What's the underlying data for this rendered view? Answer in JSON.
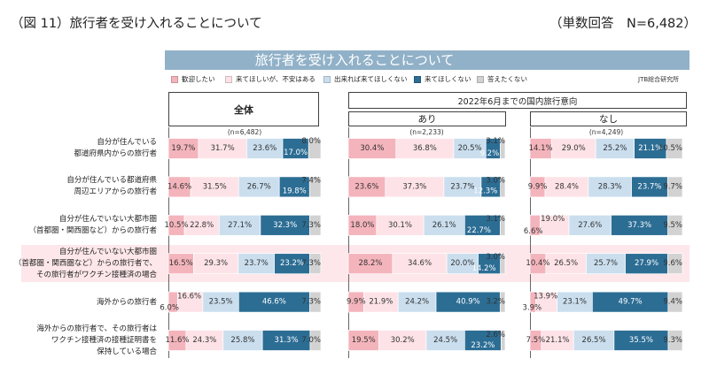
{
  "figure_title": "（図 11）旅行者を受け入れることについて",
  "note": "（単数回答　N=6,482）",
  "colors": {
    "banner": "#91b1c8",
    "highlight_row": "#fde7ea"
  },
  "chart_data": {
    "type": "bar",
    "orientation": "horizontal",
    "stacked": true,
    "title": "旅行者を受け入れることについて",
    "source": "JTB総合研究所",
    "legend": [
      "歓迎したい",
      "来てほしいが、不安はある",
      "出来れば来てほしくない",
      "来てほしくない",
      "答えたくない"
    ],
    "legend_position": "top",
    "series_colors": [
      "#f4b4bc",
      "#fde3e7",
      "#cadeee",
      "#2c6d94",
      "#d2d2d2"
    ],
    "value_suffix": "%",
    "xlim": [
      0,
      100
    ],
    "grid": false,
    "group_header": "2022年6月までの国内旅行意向",
    "categories": [
      "自分が住んでいる\n都道府県内からの旅行者",
      "自分が住んでいる都道府県\n周辺エリアからの旅行者",
      "自分が住んでいない大都市圏\n（首都圏・関西圏など）からの旅行者",
      "自分が住んでいない大都市圏\n（首都圏・関西圏など）からの旅行者で、\nその旅行者がワクチン接種済の場合",
      "海外からの旅行者",
      "海外からの旅行者で、その旅行者は\nワクチン接種済の接種証明書を\n保持している場合"
    ],
    "highlighted_category": 3,
    "panels": [
      {
        "name": "全体",
        "n": "(n=6,482)",
        "values": [
          [
            19.7,
            31.7,
            23.6,
            17.0,
            8.0
          ],
          [
            14.6,
            31.5,
            26.7,
            19.8,
            7.4
          ],
          [
            10.5,
            22.8,
            27.1,
            32.3,
            7.3
          ],
          [
            16.5,
            29.3,
            23.7,
            23.2,
            7.3
          ],
          [
            6.0,
            16.6,
            23.5,
            46.6,
            7.3
          ],
          [
            11.6,
            24.3,
            25.8,
            31.3,
            7.0
          ]
        ]
      },
      {
        "name": "あり",
        "n": "(n=2,233)",
        "values": [
          [
            30.4,
            36.8,
            20.5,
            9.2,
            3.1
          ],
          [
            23.6,
            37.3,
            23.7,
            12.3,
            3.0
          ],
          [
            18.0,
            30.1,
            26.1,
            22.7,
            3.1
          ],
          [
            28.2,
            34.6,
            20.0,
            14.2,
            3.0
          ],
          [
            9.9,
            21.9,
            24.2,
            40.9,
            3.2
          ],
          [
            19.5,
            30.2,
            24.5,
            23.2,
            2.6
          ]
        ]
      },
      {
        "name": "なし",
        "n": "(n=4,249)",
        "values": [
          [
            14.1,
            29.0,
            25.2,
            21.1,
            10.5
          ],
          [
            9.9,
            28.4,
            28.3,
            23.7,
            9.7
          ],
          [
            6.6,
            19.0,
            27.6,
            37.3,
            9.5
          ],
          [
            10.4,
            26.5,
            25.7,
            27.9,
            9.6
          ],
          [
            3.9,
            13.9,
            23.1,
            49.7,
            9.4
          ],
          [
            7.5,
            21.1,
            26.5,
            35.5,
            9.3
          ]
        ]
      }
    ]
  }
}
